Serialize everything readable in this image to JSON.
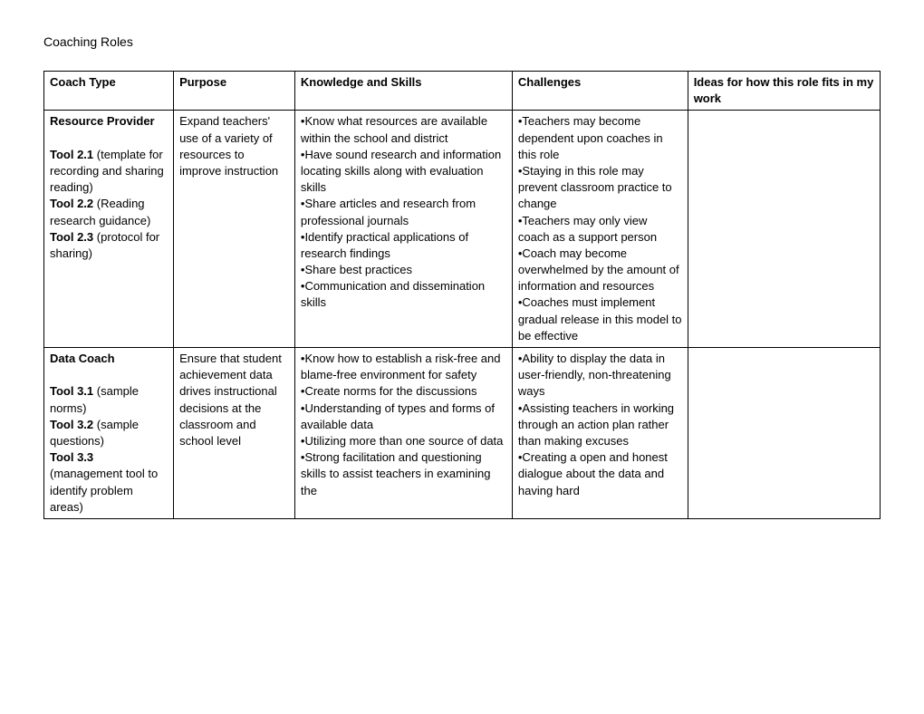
{
  "title": "Coaching Roles",
  "headers": {
    "c1": "Coach Type",
    "c2": "Purpose",
    "c3": "Knowledge and Skills",
    "c4": "Challenges",
    "c5": "Ideas for how this role fits in my work"
  },
  "row1": {
    "type_b1": "Resource Provider",
    "type_b2": "Tool 2.1",
    "type_t2": " (template for recording and sharing reading)",
    "type_b3": "Tool 2.2",
    "type_t3": " (Reading research guidance)",
    "type_b4": "Tool 2.3",
    "type_t4": " (protocol for sharing)",
    "purpose": "Expand teachers' use of a variety of resources to improve instruction",
    "ks1": "•Know what resources are available within the school and district",
    "ks2": "•Have sound research and information locating skills along with evaluation skills",
    "ks3": "•Share articles and research from professional journals",
    "ks4": "•Identify practical applications of research findings",
    "ks5": "•Share best practices",
    "ks6": "•Communication and dissemination skills",
    "ch1": "•Teachers may become dependent upon coaches in this role",
    "ch2": "•Staying in this role may prevent classroom practice to change",
    "ch3": "•Teachers may only view coach as a support person",
    "ch4": "•Coach may become overwhelmed by the amount of information and resources",
    "ch5": "•Coaches must implement gradual release in this model to be effective",
    "ideas": ""
  },
  "row2": {
    "type_b1": "Data Coach",
    "type_b2": "Tool 3.1",
    "type_t2": " (sample norms)",
    "type_b3": "Tool 3.2",
    "type_t3": " (sample questions)",
    "type_b4": "Tool 3.3",
    "type_t4": " (management tool to identify problem areas)",
    "purpose": "Ensure that student achievement data drives instructional decisions at the classroom and school level",
    "ks1": "•Know how to establish a risk-free and blame-free environment for safety",
    "ks2": "•Create norms for the discussions",
    "ks3": "•Understanding of types and forms of available data",
    "ks4": "•Utilizing more than one source of data",
    "ks5": "•Strong facilitation and questioning skills to assist teachers in examining the",
    "ch1": "•Ability to display the data in user-friendly, non-threatening ways",
    "ch2": "•Assisting teachers in working through an action plan rather than making excuses",
    "ch3": "•Creating a open and honest dialogue about the data and having hard",
    "ideas": ""
  }
}
